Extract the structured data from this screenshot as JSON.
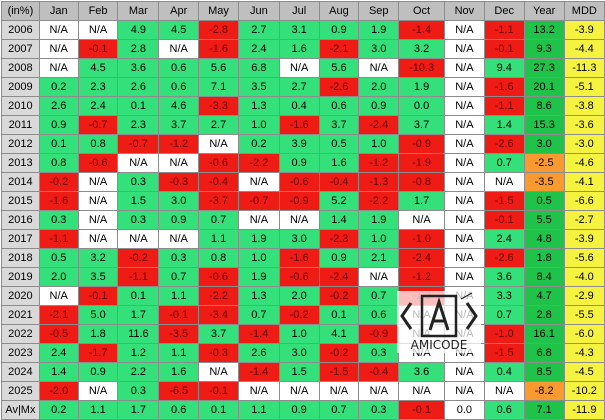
{
  "chart_data": {
    "type": "table",
    "corner_label": "(in%)",
    "columns": [
      "Jan",
      "Feb",
      "Mar",
      "Apr",
      "May",
      "Jun",
      "Jul",
      "Aug",
      "Sep",
      "Oct",
      "Nov",
      "Dec",
      "Year",
      "MDD"
    ],
    "rows": [
      {
        "label": "2006",
        "values": [
          "N/A",
          "N/A",
          "4.9",
          "4.5",
          "-2.8",
          "2.7",
          "3.1",
          "0.9",
          "1.9",
          "-1.4",
          "N/A",
          "-1.1",
          "13.2",
          "-3.9"
        ]
      },
      {
        "label": "2007",
        "values": [
          "N/A",
          "-0.1",
          "2.8",
          "N/A",
          "-1.6",
          "2.4",
          "1.6",
          "-2.1",
          "3.0",
          "3.2",
          "N/A",
          "-0.1",
          "9.3",
          "-4.4"
        ]
      },
      {
        "label": "2008",
        "values": [
          "N/A",
          "4.5",
          "3.6",
          "0.6",
          "5.6",
          "6.8",
          "N/A",
          "5.6",
          "N/A",
          "-10.3",
          "N/A",
          "9.4",
          "27.3",
          "-11.3"
        ]
      },
      {
        "label": "2009",
        "values": [
          "0.2",
          "2.3",
          "2.6",
          "0.6",
          "7.1",
          "3.5",
          "2.7",
          "-2.6",
          "2.0",
          "1.9",
          "N/A",
          "-1.6",
          "20.1",
          "-5.1"
        ]
      },
      {
        "label": "2010",
        "values": [
          "2.6",
          "2.4",
          "0.1",
          "4.6",
          "-3.3",
          "1.3",
          "0.4",
          "0.6",
          "0.9",
          "0.0",
          "N/A",
          "-1.1",
          "8.6",
          "-3.8"
        ]
      },
      {
        "label": "2011",
        "values": [
          "0.9",
          "-0.7",
          "2.3",
          "3.7",
          "2.7",
          "1.0",
          "-1.6",
          "3.7",
          "-2.4",
          "3.7",
          "N/A",
          "1.4",
          "15.3",
          "-3.6"
        ]
      },
      {
        "label": "2012",
        "values": [
          "0.1",
          "0.8",
          "-0.7",
          "-1.2",
          "N/A",
          "0.2",
          "3.9",
          "0.5",
          "1.0",
          "-0.9",
          "N/A",
          "-2.6",
          "3.0",
          "-3.0"
        ]
      },
      {
        "label": "2013",
        "values": [
          "0.8",
          "-0.6",
          "N/A",
          "N/A",
          "-0.6",
          "-2.2",
          "0.9",
          "1.6",
          "-1.2",
          "-1.9",
          "N/A",
          "0.7",
          "-2.5",
          "-4.6"
        ]
      },
      {
        "label": "2014",
        "values": [
          "-0.2",
          "N/A",
          "0.3",
          "-0.3",
          "-0.4",
          "N/A",
          "-0.6",
          "-0.4",
          "-1.3",
          "-0.8",
          "N/A",
          "N/A",
          "-3.5",
          "-4.1"
        ]
      },
      {
        "label": "2015",
        "values": [
          "-1.6",
          "N/A",
          "1.5",
          "3.0",
          "-3.7",
          "-0.7",
          "-0.9",
          "5.2",
          "-2.2",
          "1.7",
          "N/A",
          "-1.5",
          "0.5",
          "-6.6"
        ]
      },
      {
        "label": "2016",
        "values": [
          "0.3",
          "N/A",
          "0.3",
          "0.9",
          "0.7",
          "N/A",
          "N/A",
          "1.4",
          "1.9",
          "N/A",
          "N/A",
          "-0.1",
          "5.5",
          "-2.7"
        ]
      },
      {
        "label": "2017",
        "values": [
          "-1.1",
          "N/A",
          "N/A",
          "N/A",
          "1.1",
          "1.9",
          "3.0",
          "-2.3",
          "1.0",
          "-1.0",
          "N/A",
          "2.4",
          "4.8",
          "-3.9"
        ]
      },
      {
        "label": "2018",
        "values": [
          "0.5",
          "3.2",
          "-0.2",
          "0.3",
          "0.8",
          "1.0",
          "-1.6",
          "0.9",
          "2.1",
          "-2.4",
          "N/A",
          "-2.6",
          "1.8",
          "-5.6"
        ]
      },
      {
        "label": "2019",
        "values": [
          "2.0",
          "3.5",
          "-1.1",
          "0.7",
          "-0.6",
          "1.9",
          "-0.6",
          "-2.4",
          "N/A",
          "-1.2",
          "N/A",
          "3.6",
          "8.4",
          "-4.0"
        ]
      },
      {
        "label": "2020",
        "values": [
          "N/A",
          "-0.1",
          "0.1",
          "1.1",
          "-2.2",
          "1.3",
          "2.0",
          "-0.2",
          "0.7",
          "-1.3",
          "N/A",
          "3.3",
          "4.7",
          "-2.9"
        ]
      },
      {
        "label": "2021",
        "values": [
          "-2.1",
          "5.0",
          "1.7",
          "-0.1",
          "-3.4",
          "0.7",
          "-0.2",
          "0.1",
          "0.6",
          "N/A",
          "N/A",
          "0.7",
          "2.8",
          "-5.5"
        ]
      },
      {
        "label": "2022",
        "values": [
          "-0.5",
          "1.8",
          "11.6",
          "-3.5",
          "3.7",
          "-1.4",
          "1.0",
          "4.1",
          "-0.9",
          "N/A",
          "N/A",
          "-1.0",
          "16.1",
          "-6.0"
        ]
      },
      {
        "label": "2023",
        "values": [
          "2.4",
          "-1.7",
          "1.2",
          "1.1",
          "-0.3",
          "2.6",
          "3.0",
          "-0.2",
          "0.3",
          "N/A",
          "N/A",
          "-1.5",
          "6.8",
          "-4.3"
        ]
      },
      {
        "label": "2024",
        "values": [
          "1.4",
          "0.9",
          "2.2",
          "1.6",
          "N/A",
          "-1.4",
          "1.5",
          "-1.5",
          "-0.4",
          "3.6",
          "N/A",
          "0.4",
          "8.5",
          "-4.5"
        ]
      },
      {
        "label": "2025",
        "values": [
          "-2.0",
          "N/A",
          "0.3",
          "-6.5",
          "-0.1",
          "N/A",
          "N/A",
          "N/A",
          "N/A",
          "N/A",
          "N/A",
          "N/A",
          "-8.2",
          "-10.2"
        ]
      },
      {
        "label": "Av|Mx",
        "values": [
          "0.2",
          "1.1",
          "1.7",
          "0.6",
          "0.1",
          "1.1",
          "0.9",
          "0.7",
          "0.3",
          "-0.1",
          "0.0",
          "0.6",
          "7.1",
          "-11.9"
        ]
      }
    ]
  },
  "colors": {
    "header": "#bfbfbf",
    "row_header": "#d9d9d9",
    "positive": "#33e07a",
    "negative": "#ee1c14",
    "missing": "#ffffff",
    "year_positive": "#1fc34a",
    "year_negative": "#f89a30",
    "mdd": "#f6f340"
  },
  "watermark": {
    "text": "AMICODE"
  }
}
